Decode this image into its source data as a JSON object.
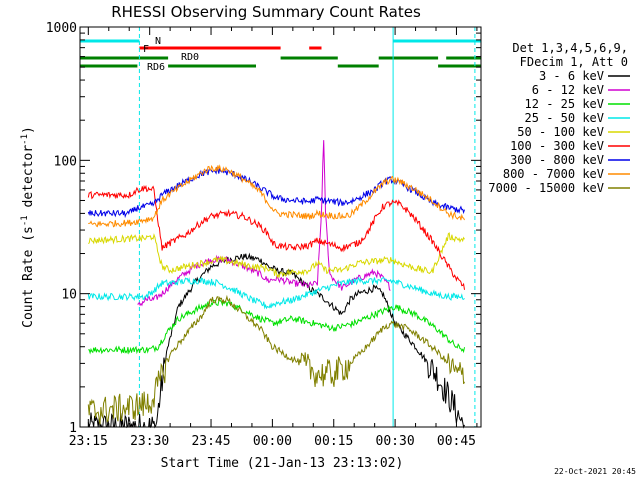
{
  "chart_data": {
    "type": "line",
    "title": "RHESSI Observing Summary Count Rates",
    "xlabel": "Start Time (21-Jan-13 23:13:02)",
    "ylabel": "Count Rate (s-1 detector-1)",
    "ylabel_parts": {
      "main": "Count Rate (s",
      "sup1": "-1",
      "mid": " detector",
      "sup2": "-1",
      "end": ")"
    },
    "yscale": "log",
    "ylim": [
      1,
      1000
    ],
    "xlim_minutes": [
      -2.0333,
      96.0
    ],
    "x_unit": "minutes since 23:15 UT",
    "x_ticks": [
      {
        "label": "23:15",
        "value": 0
      },
      {
        "label": "23:30",
        "value": 15
      },
      {
        "label": "23:45",
        "value": 30
      },
      {
        "label": "00:00",
        "value": 45
      },
      {
        "label": "00:15",
        "value": 60
      },
      {
        "label": "00:30",
        "value": 75
      },
      {
        "label": "00:45",
        "value": 90
      }
    ],
    "y_ticks": [
      {
        "label": "1",
        "value": 1
      },
      {
        "label": "10",
        "value": 10
      },
      {
        "label": "100",
        "value": 100
      },
      {
        "label": "1000",
        "value": 1000
      }
    ],
    "legend_header": [
      "Det 1,3,4,5,6,9,",
      "FDecim 1, Att 0"
    ],
    "legend_position": "right",
    "series": [
      {
        "name": "3 - 6 keV",
        "color": "#000000",
        "x": [
          0,
          14,
          16.5,
          19,
          22,
          26,
          30,
          34,
          38,
          42,
          44,
          46,
          50,
          54,
          56,
          58,
          62,
          64,
          66,
          70,
          72,
          75,
          80,
          85,
          89,
          92
        ],
        "y": [
          1,
          1,
          1,
          3.5,
          8,
          12,
          16,
          18,
          19,
          18,
          16,
          15,
          14,
          11,
          10,
          9,
          7,
          9,
          10,
          11,
          10,
          6,
          4,
          2.5,
          1.5,
          1
        ]
      },
      {
        "name": "6 - 12 keV",
        "color": "#d000d0",
        "x": [
          12,
          13,
          14,
          15,
          16,
          18,
          20,
          22,
          26,
          30,
          34,
          38,
          42,
          44,
          46,
          50,
          54,
          56,
          57,
          57.5,
          58,
          59,
          62,
          64,
          66,
          70,
          72,
          74
        ],
        "y": [
          8,
          8.5,
          9,
          9,
          9,
          10,
          11.5,
          13,
          16,
          18,
          18,
          16,
          14,
          12.5,
          13,
          12,
          11.5,
          12,
          40,
          150,
          40,
          14,
          11,
          12,
          13,
          14.5,
          13,
          11
        ]
      },
      {
        "name": "12 - 25 keV",
        "color": "#00e000",
        "x": [
          0,
          10,
          15,
          17,
          19,
          22,
          26,
          30,
          34,
          38,
          42,
          45,
          50,
          55,
          60,
          65,
          70,
          75,
          80,
          85,
          90,
          92
        ],
        "y": [
          3.8,
          3.8,
          3.8,
          4,
          5,
          6.5,
          7.5,
          8.5,
          8.5,
          7.5,
          6.5,
          6,
          6.5,
          6,
          5.5,
          6,
          7,
          8,
          7,
          5.5,
          4,
          3.8
        ]
      },
      {
        "name": "25 - 50 keV",
        "color": "#00e8e8",
        "x": [
          0,
          10,
          14,
          16,
          18,
          20,
          24,
          28,
          32,
          36,
          40,
          44,
          46,
          50,
          54,
          58,
          62,
          66,
          70,
          74,
          76,
          80,
          84,
          88,
          92
        ],
        "y": [
          9.5,
          9.5,
          9.5,
          10.5,
          12,
          12,
          12.5,
          12.5,
          12,
          10.5,
          9,
          8,
          8.5,
          9,
          10,
          11,
          12,
          12.5,
          12.5,
          12.5,
          12,
          11,
          10,
          9.5,
          9.5
        ]
      },
      {
        "name": "50 - 100 keV",
        "color": "#d8d800",
        "x": [
          0,
          12,
          14,
          16,
          18,
          20,
          24,
          28,
          32,
          36,
          40,
          44,
          46,
          50,
          54,
          56,
          58,
          62,
          64,
          66,
          70,
          74,
          76,
          80,
          84,
          88,
          92
        ],
        "y": [
          25,
          26,
          26,
          27,
          16,
          15,
          16,
          17,
          18,
          17,
          16,
          15.5,
          14,
          14.5,
          15,
          17,
          15,
          15,
          16,
          17,
          17.5,
          18,
          17,
          15.5,
          14.5,
          27,
          25
        ]
      },
      {
        "name": "100 - 300 keV",
        "color": "#ff0000",
        "x": [
          0,
          10,
          12,
          14,
          16,
          18,
          20,
          24,
          28,
          30,
          34,
          38,
          42,
          44,
          45,
          46,
          50,
          54,
          56,
          58,
          60,
          62,
          64,
          66,
          68,
          70,
          72,
          74,
          76,
          78,
          80,
          82,
          84,
          86,
          88,
          90,
          91,
          92
        ],
        "y": [
          55,
          55,
          60,
          62,
          60,
          22,
          24,
          28,
          35,
          38,
          40,
          38,
          32,
          28,
          24,
          23,
          22,
          23,
          25,
          24,
          23,
          22,
          23,
          24,
          28,
          36,
          45,
          48,
          47,
          42,
          36,
          30,
          25,
          20,
          16,
          13,
          12,
          11
        ]
      },
      {
        "name": "300 - 800 keV",
        "color": "#0000e8",
        "x": [
          0,
          10,
          12,
          14,
          16,
          18,
          20,
          24,
          28,
          32,
          36,
          40,
          44,
          46,
          50,
          54,
          56,
          58,
          62,
          64,
          66,
          70,
          72,
          74,
          76,
          80,
          84,
          88,
          92
        ],
        "y": [
          40,
          40,
          44,
          45,
          47,
          55,
          60,
          70,
          80,
          84,
          78,
          68,
          57,
          52,
          50,
          49,
          51,
          50,
          48,
          49,
          52,
          60,
          68,
          72,
          68,
          58,
          48,
          44,
          42
        ]
      },
      {
        "name": "800 - 7000 keV",
        "color": "#ff8c00",
        "x": [
          0,
          10,
          12,
          14,
          16,
          18,
          20,
          24,
          28,
          30,
          34,
          38,
          42,
          44,
          46,
          50,
          54,
          56,
          58,
          62,
          64,
          66,
          70,
          72,
          74,
          76,
          80,
          84,
          88,
          92
        ],
        "y": [
          33,
          34,
          35,
          36,
          37,
          50,
          56,
          68,
          82,
          88,
          85,
          72,
          58,
          48,
          40,
          39,
          38,
          40,
          39,
          38,
          39,
          44,
          58,
          67,
          72,
          70,
          60,
          50,
          40,
          36
        ]
      },
      {
        "name": "7000 - 15000 keV",
        "color": "#808000",
        "x": [
          0,
          10,
          15,
          17,
          20,
          24,
          28,
          30,
          34,
          38,
          42,
          45,
          48,
          52,
          56,
          60,
          64,
          68,
          72,
          74,
          78,
          82,
          86,
          90,
          92
        ],
        "y": [
          1.3,
          1.4,
          1.5,
          2,
          3.5,
          5,
          7,
          9,
          9,
          7,
          5.5,
          4,
          3.5,
          3,
          2.5,
          2.5,
          3,
          4,
          5.5,
          6,
          5.5,
          4.5,
          3.5,
          2.5,
          2.5
        ]
      }
    ],
    "flags": [
      {
        "label": "N",
        "color": "#00e8e8",
        "segments": [
          [
            -2.0333,
            12.5
          ],
          [
            74.5,
            96
          ]
        ]
      },
      {
        "label": "F",
        "color": "#ff0000",
        "segments": [
          [
            12.5,
            47
          ],
          [
            54,
            57
          ]
        ]
      },
      {
        "label": "RD0",
        "color": "#008000",
        "segments": [
          [
            -2.0333,
            19.5
          ],
          [
            47,
            61
          ],
          [
            71,
            85.5
          ],
          [
            87.5,
            96
          ]
        ]
      },
      {
        "label": "RD6",
        "color": "#008000",
        "segments": [
          [
            -2.0333,
            12
          ],
          [
            19.5,
            41
          ],
          [
            61,
            71
          ],
          [
            85.5,
            96
          ]
        ]
      }
    ],
    "saa_markers": [
      {
        "x": 12.5,
        "color": "#00e8e8",
        "style": "dashed"
      },
      {
        "x": 74.5,
        "color": "#00e8e8",
        "style": "solid"
      },
      {
        "x": 94.5,
        "color": "#00e8e8",
        "style": "dashed"
      }
    ],
    "footer_timestamp": "22-Oct-2021 20:45"
  }
}
